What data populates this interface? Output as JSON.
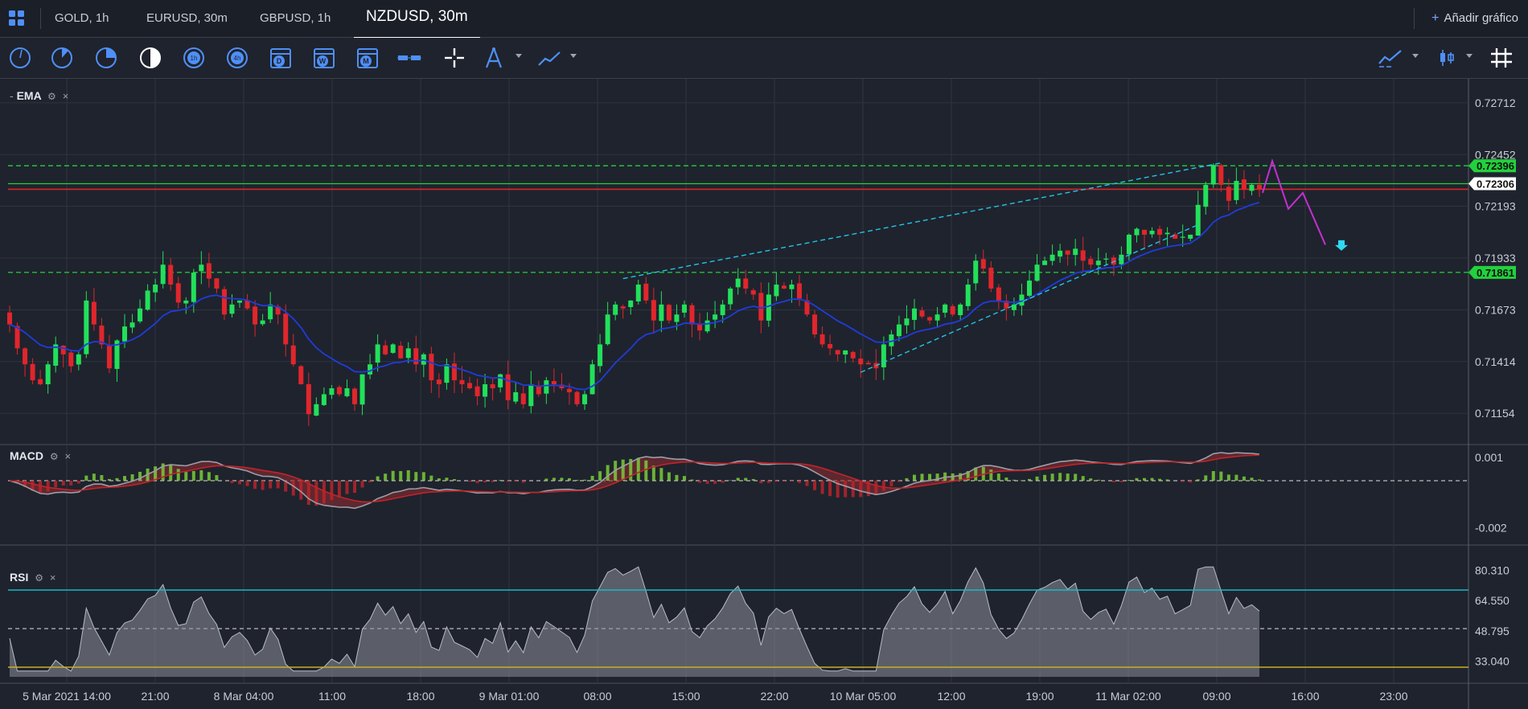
{
  "tabs": [
    {
      "label": "GOLD, 1h",
      "active": false
    },
    {
      "label": "EURUSD, 30m",
      "active": false
    },
    {
      "label": "GBPUSD, 1h",
      "active": false
    },
    {
      "label": "NZDUSD, 30m",
      "active": true
    }
  ],
  "add_chart": {
    "plus": "+",
    "label": "Añadir gráfico"
  },
  "toolbar": {
    "icons": [
      "clock-5min-icon",
      "clock-10min-icon",
      "clock-15min-icon",
      "clock-30min-icon",
      "clock-1h-icon",
      "clock-4h-icon",
      "calendar-day-icon",
      "calendar-week-icon",
      "calendar-month-icon",
      "chart-layout-icon",
      "crosshair-icon",
      "drawing-tools-icon",
      "line-tool-icon"
    ],
    "letters": {
      "d": "D",
      "w": "W",
      "m": "M",
      "h1": "1h",
      "h4": "4h"
    },
    "right_icons": [
      "indicators-icon",
      "chart-type-icon",
      "grid-icon"
    ]
  },
  "colors": {
    "bull": "#22e05a",
    "bear": "#e0262c",
    "ema": "#1f3cdc",
    "h_green": "#22d13c",
    "h_red": "#d8262c",
    "channel": "#22c4e8",
    "forecast": "#c42fd4",
    "macd": "#9a9ea8",
    "signal": "#c0242a",
    "rsi_upper": "#1ab8c8",
    "rsi_lower": "#c8b021",
    "arrow": "#30d8f0"
  },
  "panes": {
    "main": {
      "name": "EMA",
      "gear": "⚙",
      "close": "×"
    },
    "macd": {
      "name": "MACD",
      "gear": "⚙",
      "close": "×"
    },
    "rsi": {
      "name": "RSI",
      "gear": "⚙",
      "close": "×"
    }
  },
  "price_axis": {
    "ticks": [
      "0.72712",
      "0.72452",
      "0.72193",
      "0.71933",
      "0.71673",
      "0.71414",
      "0.71154"
    ],
    "tags": [
      {
        "text": "0.72396",
        "style": "green"
      },
      {
        "text": "0.72306",
        "style": "white"
      },
      {
        "text": "0.71861",
        "style": "green"
      }
    ]
  },
  "macd_axis": {
    "ticks": [
      "0.001",
      "-0.002"
    ]
  },
  "rsi_axis": {
    "ticks": [
      "80.310",
      "64.550",
      "48.795",
      "33.040"
    ]
  },
  "time_axis": {
    "labels": [
      "5 Mar 2021 14:00",
      "21:00",
      "8 Mar 04:00",
      "11:00",
      "18:00",
      "9 Mar 01:00",
      "08:00",
      "15:00",
      "22:00",
      "10 Mar 05:00",
      "12:00",
      "19:00",
      "11 Mar 02:00",
      "09:00",
      "16:00",
      "23:00"
    ]
  },
  "chart_data": {
    "type": "candlestick",
    "symbol": "NZDUSD",
    "timeframe": "30m",
    "ylim": [
      0.7103,
      0.728
    ],
    "horizontal_levels": [
      0.72396,
      0.72306,
      0.72278,
      0.71861
    ],
    "close_series": [
      0.716,
      0.7148,
      0.714,
      0.7132,
      0.713,
      0.714,
      0.715,
      0.7145,
      0.7139,
      0.7145,
      0.7172,
      0.716,
      0.715,
      0.7138,
      0.7152,
      0.7159,
      0.7161,
      0.7168,
      0.7177,
      0.718,
      0.719,
      0.718,
      0.7171,
      0.7172,
      0.7186,
      0.719,
      0.7183,
      0.7178,
      0.7165,
      0.717,
      0.7172,
      0.7168,
      0.716,
      0.7162,
      0.717,
      0.7165,
      0.715,
      0.714,
      0.713,
      0.7115,
      0.712,
      0.7125,
      0.7128,
      0.7125,
      0.7128,
      0.712,
      0.7135,
      0.714,
      0.715,
      0.7145,
      0.715,
      0.7143,
      0.7148,
      0.714,
      0.7145,
      0.7132,
      0.713,
      0.714,
      0.7132,
      0.713,
      0.7128,
      0.7124,
      0.713,
      0.7128,
      0.7135,
      0.7122,
      0.7126,
      0.712,
      0.713,
      0.7125,
      0.7132,
      0.713,
      0.7128,
      0.7126,
      0.712,
      0.7125,
      0.714,
      0.715,
      0.7165,
      0.717,
      0.7168,
      0.7172,
      0.718,
      0.7172,
      0.7162,
      0.717,
      0.7162,
      0.7165,
      0.717,
      0.716,
      0.7157,
      0.7162,
      0.7165,
      0.717,
      0.7178,
      0.7183,
      0.7178,
      0.7175,
      0.7162,
      0.7175,
      0.718,
      0.7178,
      0.718,
      0.7173,
      0.7165,
      0.7155,
      0.715,
      0.7148,
      0.7145,
      0.7147,
      0.7143,
      0.714,
      0.714,
      0.7138,
      0.715,
      0.7155,
      0.716,
      0.7163,
      0.7168,
      0.7164,
      0.7162,
      0.7165,
      0.717,
      0.7165,
      0.717,
      0.718,
      0.7192,
      0.7188,
      0.7178,
      0.7172,
      0.7168,
      0.717,
      0.7175,
      0.7182,
      0.719,
      0.7192,
      0.7195,
      0.7197,
      0.7195,
      0.7198,
      0.7192,
      0.719,
      0.7192,
      0.7193,
      0.719,
      0.7195,
      0.7205,
      0.7208,
      0.7205,
      0.7207,
      0.7205,
      0.7206,
      0.7203,
      0.7204,
      0.7205,
      0.722,
      0.723,
      0.724,
      0.723,
      0.7222,
      0.7232,
      0.7228,
      0.723,
      0.7228
    ],
    "forecast_path": [
      0.7226,
      0.7242,
      0.7218,
      0.7226,
      0.72
    ],
    "macd_range": [
      -0.0024,
      0.0012
    ],
    "rsi_range": [
      25,
      90
    ],
    "rsi_levels": [
      70,
      30
    ]
  }
}
